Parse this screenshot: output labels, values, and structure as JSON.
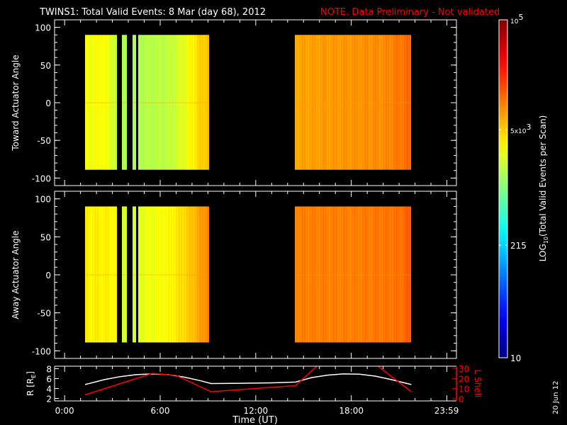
{
  "chart_data": {
    "type": "heatmap",
    "title": "TWINS1: Total Valid Events:  8 Mar (day  68), 2012",
    "note": "NOTE. Data Preliminary - Not validated",
    "note_color": "#ff0000",
    "xlabel": "Time (UT)",
    "x_ticks": [
      {
        "h": 0,
        "label": "0:00"
      },
      {
        "h": 6,
        "label": "6:00"
      },
      {
        "h": 12,
        "label": "12:00"
      },
      {
        "h": 18,
        "label": "18:00"
      },
      {
        "h": 23.98,
        "label": "23:59"
      }
    ],
    "xlim": [
      -0.63,
      24.6
    ],
    "colorbar": {
      "label": "LOG10(Total Valid Events per Scan)",
      "label_main": "LOG",
      "label_sub": "10",
      "label_rest": "(Total Valid Events per Scan)",
      "range": [
        10,
        100000
      ],
      "scale": "log",
      "colormap": "jet",
      "ticks": [
        {
          "value": 100000,
          "label": "10",
          "sup": "5"
        },
        {
          "value": 5000,
          "label": "5x10",
          "sup": "3"
        },
        {
          "value": 215,
          "label": "215",
          "sup": ""
        },
        {
          "value": 10,
          "label": "10",
          "sup": ""
        }
      ]
    },
    "panels": [
      {
        "ylabel": "Toward Actuator Angle",
        "ylim": [
          -110,
          110
        ],
        "y_ticks": [
          100,
          50,
          0,
          -50,
          -100
        ],
        "data_y_range": [
          -89,
          90
        ],
        "blocks": [
          {
            "t0": 1.29,
            "t1": 3.29,
            "log_values": [
              [
                1.29,
                3.45
              ],
              [
                2.5,
                3.5
              ],
              [
                3.0,
                3.35
              ],
              [
                3.29,
                3.25
              ]
            ]
          },
          {
            "t0": 3.61,
            "t1": 3.92,
            "log_values": [
              [
                3.61,
                3.2
              ],
              [
                3.92,
                3.2
              ]
            ]
          },
          {
            "t0": 4.27,
            "t1": 4.5,
            "log_values": [
              [
                4.27,
                3.2
              ],
              [
                4.5,
                3.2
              ]
            ]
          },
          {
            "t0": 4.63,
            "t1": 9.08,
            "log_values": [
              [
                4.63,
                3.2
              ],
              [
                6.5,
                3.25
              ],
              [
                7.5,
                3.4
              ],
              [
                8.4,
                3.65
              ],
              [
                9.08,
                3.75
              ]
            ]
          },
          {
            "t0": 14.47,
            "t1": 21.77,
            "log_values": [
              [
                14.47,
                3.85
              ],
              [
                17,
                3.9
              ],
              [
                20,
                3.95
              ],
              [
                21.3,
                4.05
              ],
              [
                21.77,
                4.1
              ]
            ]
          }
        ]
      },
      {
        "ylabel": "Away Actuator Angle",
        "ylim": [
          -110,
          110
        ],
        "y_ticks": [
          100,
          50,
          0,
          -50,
          -100
        ],
        "data_y_range": [
          -89,
          90
        ],
        "blocks": [
          {
            "t0": 1.29,
            "t1": 3.29,
            "log_values": [
              [
                1.29,
                3.55
              ],
              [
                2.5,
                3.55
              ],
              [
                3.29,
                3.5
              ]
            ]
          },
          {
            "t0": 3.61,
            "t1": 3.92,
            "log_values": [
              [
                3.61,
                3.35
              ],
              [
                3.92,
                3.35
              ]
            ]
          },
          {
            "t0": 4.27,
            "t1": 4.5,
            "log_values": [
              [
                4.27,
                3.35
              ],
              [
                4.5,
                3.35
              ]
            ]
          },
          {
            "t0": 4.63,
            "t1": 9.08,
            "log_values": [
              [
                4.63,
                3.4
              ],
              [
                6.5,
                3.5
              ],
              [
                7.8,
                3.7
              ],
              [
                9.08,
                4.0
              ]
            ]
          },
          {
            "t0": 14.47,
            "t1": 21.77,
            "log_values": [
              [
                14.47,
                4.0
              ],
              [
                18,
                4.0
              ],
              [
                21.0,
                4.05
              ],
              [
                21.77,
                4.15
              ]
            ]
          }
        ]
      }
    ],
    "orbit_panel": {
      "ylabel_left": "R [RE]",
      "ylabel_left_main": "R [R",
      "ylabel_left_sub": "E",
      "ylabel_left_end": "]",
      "ylim_left": [
        1.5,
        8.5
      ],
      "y_ticks_left": [
        2,
        4,
        6,
        8
      ],
      "ylabel_right": "L Shell",
      "ylim_right": [
        -2,
        32
      ],
      "y_ticks_right": [
        0,
        10,
        20,
        30
      ],
      "right_color": "#ff0000",
      "series": [
        {
          "name": "R",
          "axis": "left",
          "color": "#ffffff",
          "x": [
            1.29,
            2.5,
            3.5,
            4.5,
            5.5,
            6.5,
            7.5,
            8.5,
            9.2,
            11,
            13,
            14.5,
            15.5,
            16.5,
            17.5,
            18.5,
            19.5,
            20.5,
            21.77
          ],
          "y": [
            4.8,
            5.8,
            6.4,
            6.8,
            6.95,
            6.8,
            6.3,
            5.6,
            5.0,
            5.05,
            5.15,
            5.3,
            6.2,
            6.7,
            6.95,
            6.9,
            6.5,
            5.8,
            4.8
          ]
        },
        {
          "name": "L Shell",
          "axis": "right",
          "color": "#ff0000",
          "x": [
            1.29,
            3.5,
            5.5,
            7.0,
            9.2,
            14.5,
            15.9,
            19.6,
            21.77
          ],
          "y": [
            4,
            15,
            25,
            23,
            7,
            13,
            33,
            33,
            7
          ]
        }
      ]
    },
    "date_stamp": "20 Jun 12"
  }
}
